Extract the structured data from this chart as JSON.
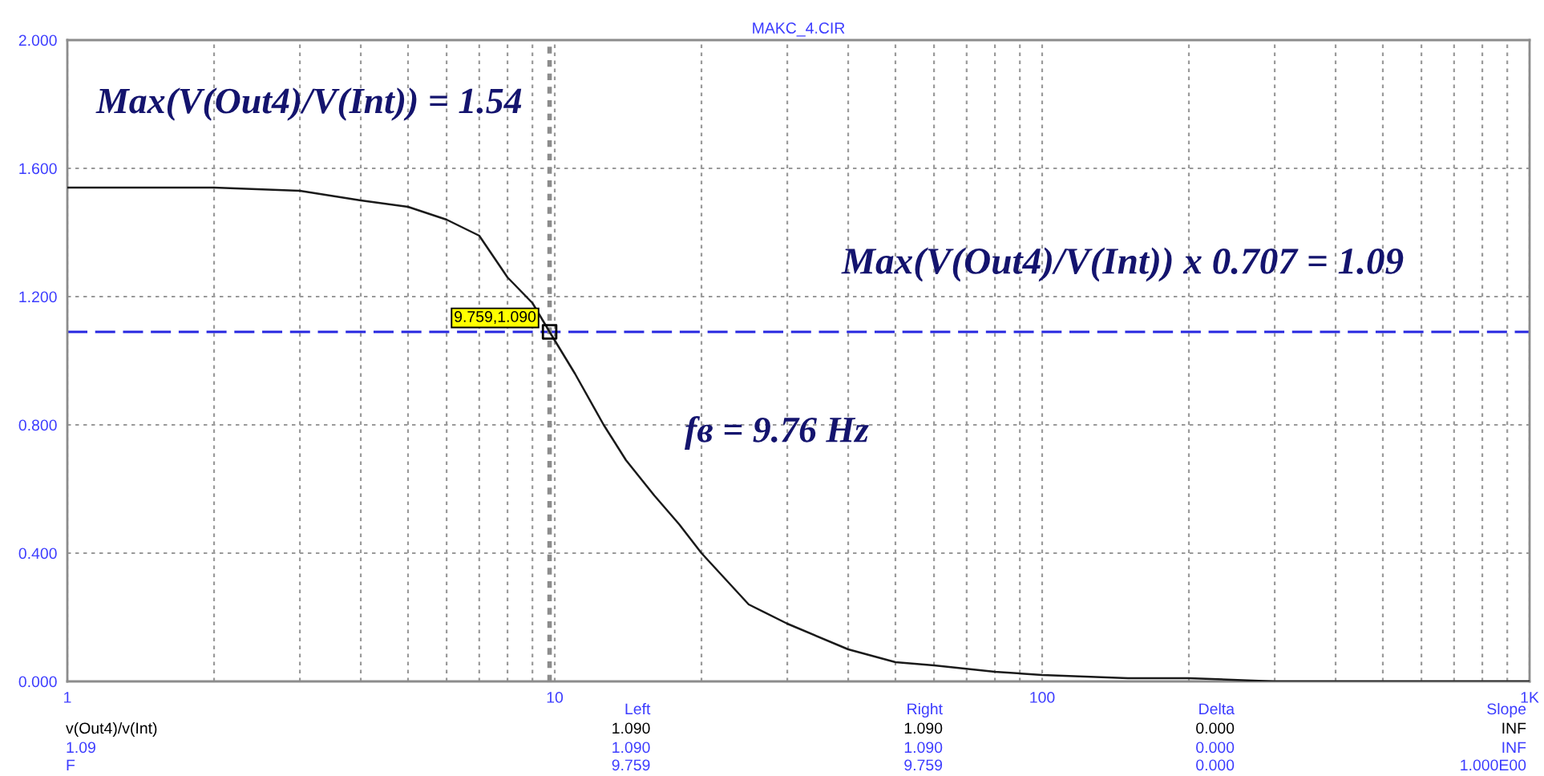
{
  "chart_data": {
    "type": "line",
    "title": "MAKC_4.CIR",
    "series": [
      {
        "color": "#1a1a1a",
        "x": [
          1,
          2,
          3,
          4,
          5,
          6,
          7,
          8,
          9,
          9.759,
          11,
          12.6,
          14,
          16,
          18,
          20,
          25,
          30,
          40,
          50,
          60,
          80,
          100,
          150,
          200,
          300,
          500,
          1000
        ],
        "values": [
          1.54,
          1.54,
          1.53,
          1.5,
          1.48,
          1.44,
          1.39,
          1.26,
          1.18,
          1.09,
          0.96,
          0.8,
          0.69,
          0.58,
          0.49,
          0.4,
          0.24,
          0.18,
          0.1,
          0.06,
          0.05,
          0.03,
          0.02,
          0.01,
          0.01,
          0,
          0,
          0
        ]
      },
      {
        "type": "scatter",
        "marker": "square",
        "color": "#000000",
        "x": [
          9.759
        ],
        "values": [
          1.09
        ]
      }
    ],
    "log": "x",
    "xlim": [
      1,
      1000
    ],
    "ylim": [
      0,
      2
    ],
    "xticks": [
      1,
      {
        "value": 2,
        "label": null
      },
      {
        "value": 3,
        "label": null
      },
      {
        "value": 4,
        "label": null
      },
      {
        "value": 5,
        "label": null
      },
      {
        "value": 6,
        "label": null
      },
      {
        "value": 7,
        "label": null
      },
      {
        "value": 8,
        "label": null
      },
      {
        "value": 9,
        "label": null
      },
      10,
      {
        "value": 20,
        "label": null
      },
      {
        "value": 30,
        "label": null
      },
      {
        "value": 40,
        "label": null
      },
      {
        "value": 50,
        "label": null
      },
      {
        "value": 60,
        "label": null
      },
      {
        "value": 70,
        "label": null
      },
      {
        "value": 80,
        "label": null
      },
      {
        "value": 90,
        "label": null
      },
      100,
      {
        "value": 200,
        "label": null
      },
      {
        "value": 300,
        "label": null
      },
      {
        "value": 400,
        "label": null
      },
      {
        "value": 500,
        "label": null
      },
      {
        "value": 600,
        "label": null
      },
      {
        "value": 700,
        "label": null
      },
      {
        "value": 800,
        "label": null
      },
      {
        "value": 900,
        "label": null
      },
      {
        "value": 1000,
        "label": "1K"
      }
    ],
    "yticks": [
      {
        "value": 0,
        "label": "0.000"
      },
      {
        "value": 0.4,
        "label": "0.400"
      },
      {
        "value": 0.8,
        "label": "0.800"
      },
      {
        "value": 1.2,
        "label": "1.200"
      },
      {
        "value": 1.6,
        "label": "1.600"
      },
      {
        "value": 2,
        "label": "2.000"
      }
    ],
    "grid": true,
    "ref_lines": [
      {
        "axis": "y",
        "value": 1.09,
        "color": "#2626e0",
        "line_style": "dashed"
      },
      {
        "axis": "x",
        "value": 9.759,
        "color": "#8c8c8c",
        "line_style": "dotted"
      }
    ],
    "annotations": [
      "Max(V(Out4)/V(Int)) = 1.54",
      "Max(V(Out4)/V(Int)) x 0.707 = 1.09",
      "fв = 9.76 Hz",
      {
        "text": "9.759,1.090",
        "x": 9.759,
        "y": 1.09
      },
      "Left",
      "Right",
      "Delta",
      "Slope",
      "v(Out4)/v(Int)",
      "1.090",
      "1.090",
      "0.000",
      "INF",
      "1.09",
      "1.090",
      "1.090",
      "0.000",
      "INF",
      "F",
      "9.759",
      "9.759",
      "0.000",
      "1.000E00"
    ]
  }
}
